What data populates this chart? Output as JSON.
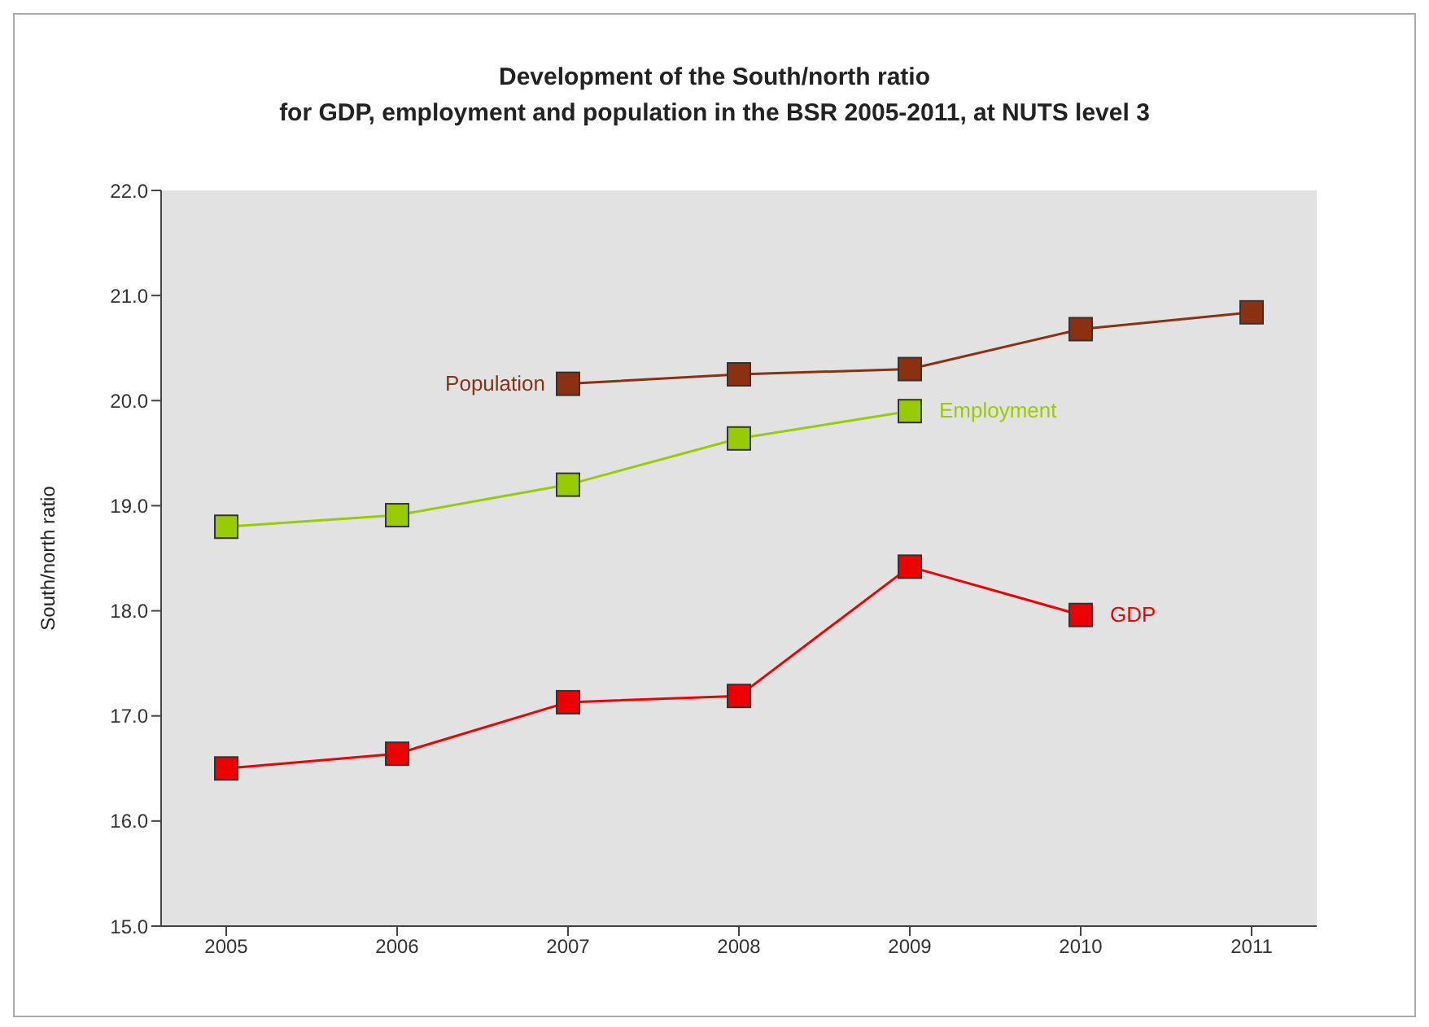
{
  "chart_data": {
    "type": "line",
    "title": "Development of the South/north ratio\nfor GDP, employment and population in the BSR 2005-2011, at NUTS level 3",
    "ylabel": "South/north ratio",
    "categories": [
      "2005",
      "2006",
      "2007",
      "2008",
      "2009",
      "2010",
      "2011"
    ],
    "series": [
      {
        "name": "Population",
        "color": "#8b3010",
        "values": [
          null,
          null,
          20.16,
          20.25,
          20.3,
          20.68,
          20.84
        ]
      },
      {
        "name": "Employment",
        "color": "#99cc00",
        "values": [
          18.8,
          18.91,
          19.2,
          19.64,
          19.9,
          null,
          null
        ]
      },
      {
        "name": "GDP",
        "color": "#ee0000",
        "values": [
          16.5,
          16.64,
          17.13,
          17.19,
          18.42,
          17.96,
          null
        ]
      }
    ],
    "ylim": [
      15,
      22
    ],
    "yticks": [
      {
        "value": 15,
        "label": "15.0"
      },
      {
        "value": 16,
        "label": "16.0"
      },
      {
        "value": 17,
        "label": "17.0"
      },
      {
        "value": 18,
        "label": "18.0"
      },
      {
        "value": 19,
        "label": "19.0"
      },
      {
        "value": 20,
        "label": "20.0"
      },
      {
        "value": 21,
        "label": "21.0"
      },
      {
        "value": 22,
        "label": "22.0"
      }
    ],
    "marker": "square",
    "line_style": "solid"
  }
}
